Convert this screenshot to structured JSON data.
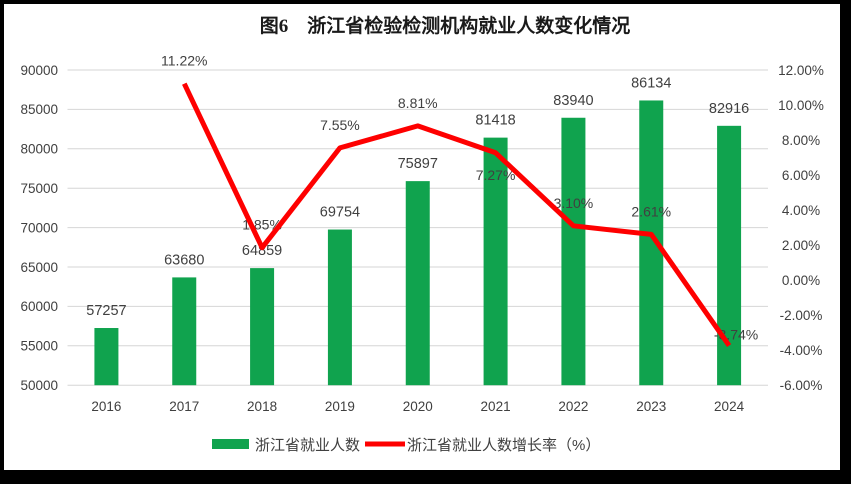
{
  "chart_data": {
    "type": "combo-bar-line",
    "title": "图6　浙江省检验检测机构就业人数变化情况",
    "categories": [
      "2016",
      "2017",
      "2018",
      "2019",
      "2020",
      "2021",
      "2022",
      "2023",
      "2024"
    ],
    "series": [
      {
        "name": "浙江省就业人数",
        "type": "bar",
        "axis": "left",
        "color": "#10a34e",
        "values": [
          57257,
          63680,
          64859,
          69754,
          75897,
          81418,
          83940,
          86134,
          82916
        ],
        "labels": [
          "57257",
          "63680",
          "64859",
          "69754",
          "75897",
          "81418",
          "83940",
          "86134",
          "82916"
        ]
      },
      {
        "name": "浙江省就业人数增长率（%）",
        "type": "line",
        "axis": "right",
        "color": "#fe0000",
        "values": [
          null,
          11.22,
          1.85,
          7.55,
          8.81,
          7.27,
          3.1,
          2.61,
          -3.74
        ],
        "labels": [
          "",
          "11.22%",
          "1.85%",
          "7.55%",
          "8.81%",
          "7.27%",
          "3.10%",
          "2.61%",
          "-3.74%"
        ]
      }
    ],
    "left_axis": {
      "min": 50000,
      "max": 90000,
      "ticks": [
        "50000",
        "55000",
        "60000",
        "65000",
        "70000",
        "75000",
        "80000",
        "85000",
        "90000"
      ]
    },
    "right_axis": {
      "min": -6,
      "max": 12,
      "ticks": [
        "-6.00%",
        "-4.00%",
        "-2.00%",
        "0.00%",
        "2.00%",
        "4.00%",
        "6.00%",
        "8.00%",
        "10.00%",
        "12.00%"
      ]
    },
    "grid": true,
    "legend_position": "bottom",
    "colors": {
      "grid": "#d6d6d6",
      "axis_text": "#404040",
      "label_text": "#404040",
      "title_text": "#1a1a1a",
      "background": "#ffffff",
      "frame": "#000000"
    }
  }
}
